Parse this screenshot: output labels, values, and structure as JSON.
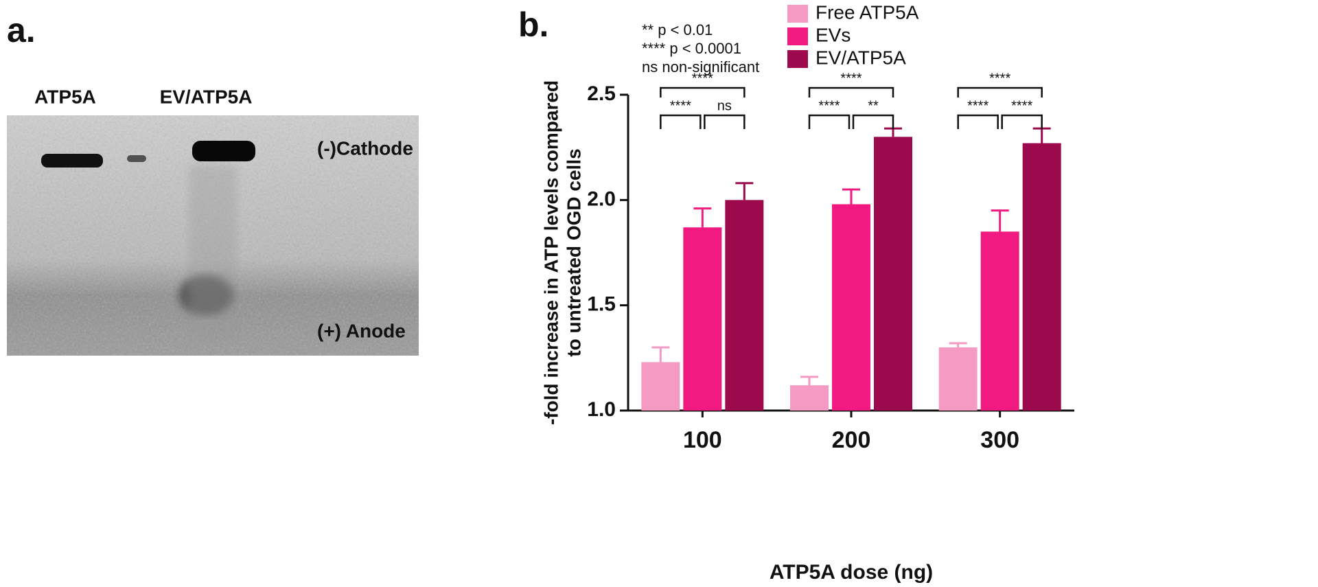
{
  "gel": {
    "panel_label": "a.",
    "lanes": [
      "ATP5A",
      "EV/ATP5A"
    ],
    "markers": [
      "(-)Cathode",
      "(+) Anode"
    ]
  },
  "chart_data": {
    "type": "bar",
    "panel_label": "b.",
    "x_label": "ATP5A dose (ng)",
    "y_label": [
      "-fold increase in ATP levels compared",
      "to untreated OGD cells"
    ],
    "categories": [
      "100",
      "200",
      "300"
    ],
    "series": [
      {
        "name": "Free ATP5A",
        "color": "#f59ac3",
        "values": [
          1.23,
          1.12,
          1.3
        ],
        "errors": [
          0.07,
          0.04,
          0.02
        ]
      },
      {
        "name": "EVs",
        "color": "#f01a80",
        "values": [
          1.87,
          1.98,
          1.85
        ],
        "errors": [
          0.09,
          0.07,
          0.1
        ]
      },
      {
        "name": "EV/ATP5A",
        "color": "#9c0a4d",
        "values": [
          2.0,
          2.3,
          2.27
        ],
        "errors": [
          0.08,
          0.04,
          0.07
        ]
      }
    ],
    "ylim": [
      1.0,
      2.5
    ],
    "yticks": [
      {
        "value": 1.0,
        "label": "1.0"
      },
      {
        "value": 1.5,
        "label": "1.5"
      },
      {
        "value": 2.0,
        "label": "2.0"
      },
      {
        "value": 2.5,
        "label": "2.5"
      }
    ],
    "significance_key": [
      "** p < 0.01",
      "**** p < 0.0001",
      "ns non-significant"
    ],
    "brackets": [
      {
        "category": 0,
        "pair": [
          0,
          2
        ],
        "label": "****"
      },
      {
        "category": 0,
        "pair": [
          0,
          1
        ],
        "label": "****"
      },
      {
        "category": 0,
        "pair": [
          1,
          2
        ],
        "label": "ns"
      },
      {
        "category": 1,
        "pair": [
          0,
          2
        ],
        "label": "****"
      },
      {
        "category": 1,
        "pair": [
          0,
          1
        ],
        "label": "****"
      },
      {
        "category": 1,
        "pair": [
          1,
          2
        ],
        "label": "**"
      },
      {
        "category": 2,
        "pair": [
          0,
          2
        ],
        "label": "****"
      },
      {
        "category": 2,
        "pair": [
          0,
          1
        ],
        "label": "****"
      },
      {
        "category": 2,
        "pair": [
          1,
          2
        ],
        "label": "****"
      }
    ],
    "legend": "top"
  }
}
